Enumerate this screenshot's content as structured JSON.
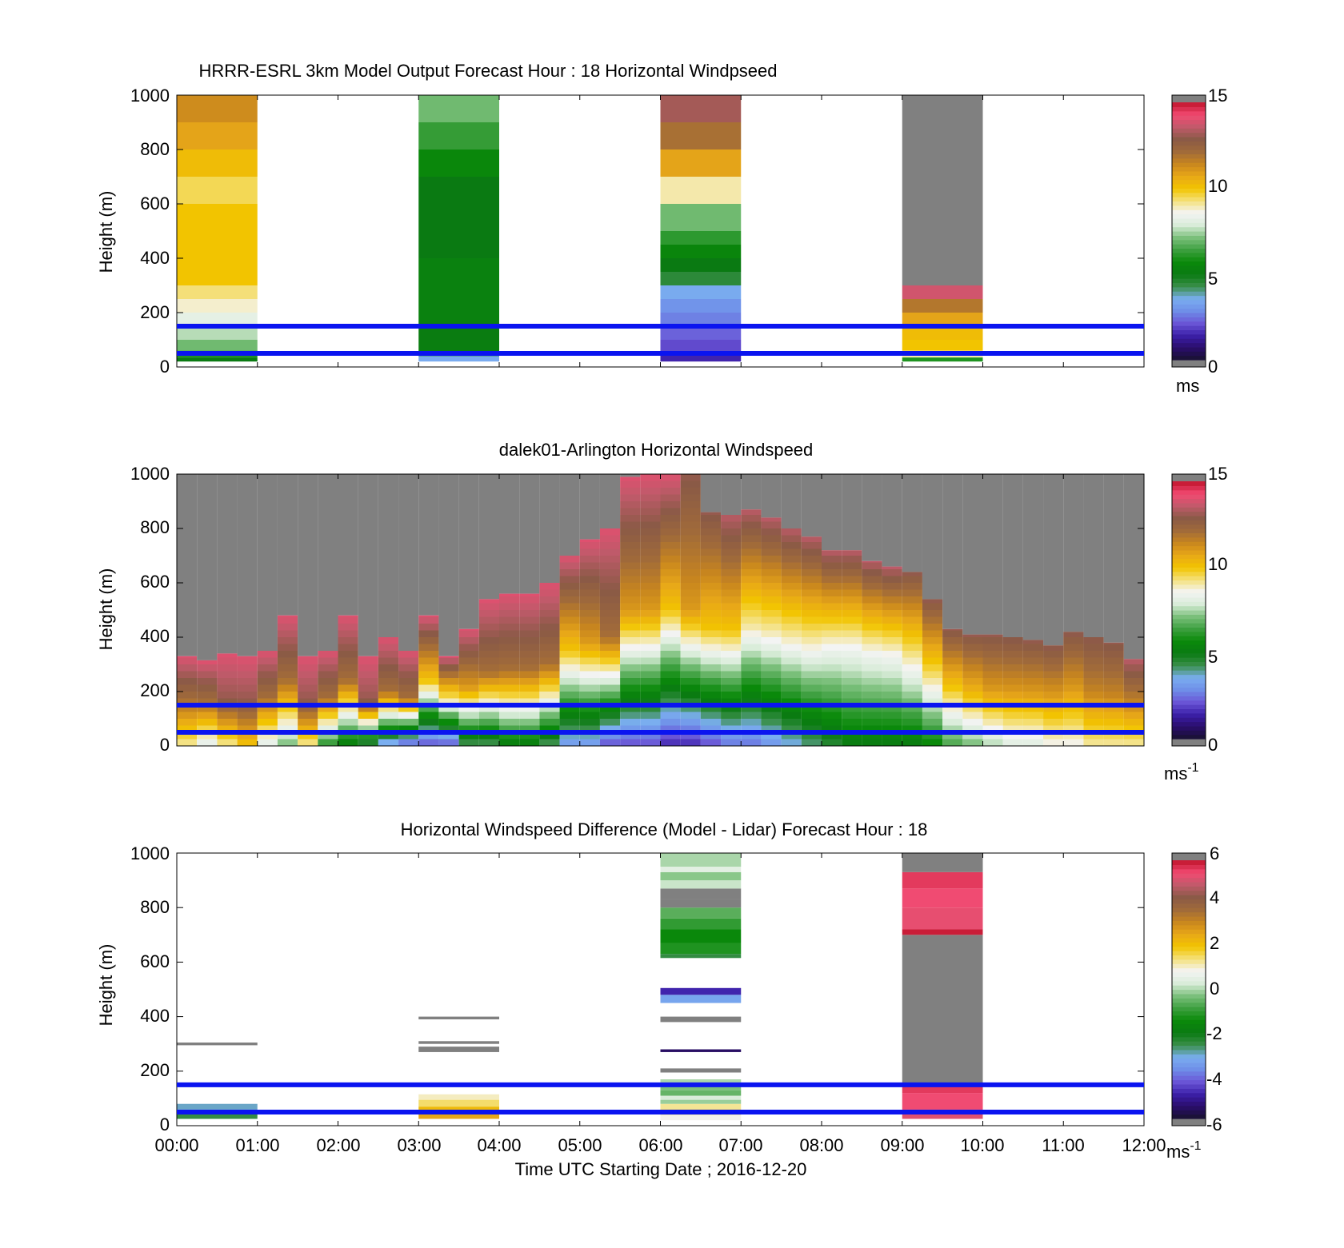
{
  "colorbar_stops": [
    "#808080",
    "#18122e",
    "#2a0d6a",
    "#3b1fa8",
    "#6a55d6",
    "#6f8ee8",
    "#7aaef0",
    "#3a8f4a",
    "#0a7a12",
    "#0a8a0a",
    "#3ea040",
    "#7cc07c",
    "#d8ecd8",
    "#f4f4f4",
    "#f4e07a",
    "#f2c400",
    "#e8a818",
    "#c8861e",
    "#a06a3a",
    "#8a5a46",
    "#c05a6a",
    "#f24a72",
    "#c0142c",
    "#808080"
  ],
  "time_axis": {
    "ticks": [
      "00:00",
      "01:00",
      "02:00",
      "03:00",
      "04:00",
      "05:00",
      "06:00",
      "07:00",
      "08:00",
      "09:00",
      "10:00",
      "11:00",
      "12:00"
    ],
    "label": "Time UTC  Starting Date ; 2016-12-20"
  },
  "panels": [
    {
      "title": "HRRR-ESRL 3km Model Output   Forecast Hour : 18 Horizontal Windpseed",
      "ylabel": "Height (m)",
      "yticks": [
        "0",
        "200",
        "400",
        "600",
        "800",
        "1000"
      ],
      "cbar_ticks": [
        "0",
        "5",
        "10",
        "15"
      ],
      "cbar_unit": "ms",
      "cbar_unit_sup": ""
    },
    {
      "title": "dalek01-Arlington  Horizontal Windspeed",
      "ylabel": "Height (m)",
      "yticks": [
        "0",
        "200",
        "400",
        "600",
        "800",
        "1000"
      ],
      "cbar_ticks": [
        "0",
        "5",
        "10",
        "15"
      ],
      "cbar_unit": "ms",
      "cbar_unit_sup": "-1"
    },
    {
      "title": "Horizontal Windspeed Difference (Model - Lidar) Forecast Hour : 18",
      "ylabel": "Height (m)",
      "yticks": [
        "0",
        "200",
        "400",
        "600",
        "800",
        "1000"
      ],
      "cbar_ticks": [
        "-6",
        "-4",
        "-2",
        "0",
        "2",
        "4",
        "6"
      ],
      "cbar_unit": "ms",
      "cbar_unit_sup": "-1"
    }
  ],
  "chart_data": [
    {
      "type": "heatmap",
      "title": "HRRR-ESRL 3km Model Output   Forecast Hour : 18 Horizontal Windpseed",
      "xlabel": "",
      "ylabel": "Height (m)",
      "xlim": [
        0,
        12
      ],
      "ylim": [
        0,
        1000
      ],
      "color_range": [
        0,
        15
      ],
      "colorbar_unit": "ms",
      "reference_lines_m": [
        50,
        150
      ],
      "columns": [
        {
          "t0": 0,
          "t1": 1,
          "bins": [
            {
              "z0": 20,
              "z1": 35,
              "v": 5
            },
            {
              "z0": 35,
              "z1": 60,
              "v": 6
            },
            {
              "z0": 60,
              "z1": 100,
              "v": 7
            },
            {
              "z0": 100,
              "z1": 150,
              "v": 7.6
            },
            {
              "z0": 150,
              "z1": 200,
              "v": 8.2
            },
            {
              "z0": 200,
              "z1": 250,
              "v": 8.8
            },
            {
              "z0": 250,
              "z1": 300,
              "v": 9.3
            },
            {
              "z0": 300,
              "z1": 600,
              "v": 10
            },
            {
              "z0": 600,
              "z1": 700,
              "v": 9.5
            },
            {
              "z0": 700,
              "z1": 800,
              "v": 10.2
            },
            {
              "z0": 800,
              "z1": 900,
              "v": 10.8
            },
            {
              "z0": 900,
              "z1": 1000,
              "v": 11.3
            }
          ]
        },
        {
          "t0": 3,
          "t1": 4,
          "bins": [
            {
              "z0": 20,
              "z1": 40,
              "v": 3.5
            },
            {
              "z0": 40,
              "z1": 100,
              "v": 5.2
            },
            {
              "z0": 100,
              "z1": 150,
              "v": 5.1
            },
            {
              "z0": 150,
              "z1": 400,
              "v": 5.3
            },
            {
              "z0": 400,
              "z1": 700,
              "v": 5
            },
            {
              "z0": 700,
              "z1": 800,
              "v": 5.6
            },
            {
              "z0": 800,
              "z1": 900,
              "v": 6.3
            },
            {
              "z0": 900,
              "z1": 1000,
              "v": 7
            }
          ]
        },
        {
          "t0": 6,
          "t1": 7,
          "bins": [
            {
              "z0": 20,
              "z1": 50,
              "v": 1.5
            },
            {
              "z0": 50,
              "z1": 100,
              "v": 2
            },
            {
              "z0": 100,
              "z1": 150,
              "v": 2.3
            },
            {
              "z0": 150,
              "z1": 200,
              "v": 2.7
            },
            {
              "z0": 200,
              "z1": 250,
              "v": 3
            },
            {
              "z0": 250,
              "z1": 300,
              "v": 3.5
            },
            {
              "z0": 300,
              "z1": 350,
              "v": 4.5
            },
            {
              "z0": 350,
              "z1": 400,
              "v": 5
            },
            {
              "z0": 400,
              "z1": 450,
              "v": 5.5
            },
            {
              "z0": 450,
              "z1": 500,
              "v": 6.2
            },
            {
              "z0": 500,
              "z1": 600,
              "v": 7
            },
            {
              "z0": 600,
              "z1": 700,
              "v": 9
            },
            {
              "z0": 700,
              "z1": 800,
              "v": 10.8
            },
            {
              "z0": 800,
              "z1": 900,
              "v": 12
            },
            {
              "z0": 900,
              "z1": 1000,
              "v": 13.2
            }
          ]
        },
        {
          "t0": 9,
          "t1": 10,
          "bins": [
            {
              "z0": 20,
              "z1": 35,
              "v": 6
            },
            {
              "z0": 35,
              "z1": 60,
              "v": 9
            },
            {
              "z0": 60,
              "z1": 100,
              "v": 10
            },
            {
              "z0": 100,
              "z1": 150,
              "v": 10.2
            },
            {
              "z0": 150,
              "z1": 200,
              "v": 10.8
            },
            {
              "z0": 200,
              "z1": 250,
              "v": 11.8
            },
            {
              "z0": 250,
              "z1": 300,
              "v": 13.8
            },
            {
              "z0": 300,
              "z1": 1000,
              "v": null
            }
          ]
        }
      ]
    },
    {
      "type": "heatmap",
      "title": "dalek01-Arlington  Horizontal Windspeed",
      "xlabel": "",
      "ylabel": "Height (m)",
      "xlim": [
        0,
        12
      ],
      "ylim": [
        0,
        1000
      ],
      "color_range": [
        0,
        15
      ],
      "colorbar_unit": "ms-1",
      "reference_lines_m": [
        50,
        150
      ],
      "bin_width_hours": 0.25,
      "bin_height_m": 25,
      "no_data_above_m": [
        330,
        315,
        340,
        330,
        350,
        480,
        330,
        350,
        480,
        330,
        400,
        350,
        480,
        330,
        430,
        540,
        560,
        560,
        600,
        700,
        760,
        800,
        990,
        1000,
        1000,
        1000,
        860,
        850,
        870,
        840,
        800,
        770,
        720,
        720,
        680,
        660,
        640,
        540,
        430,
        410,
        410,
        400,
        390,
        370,
        420,
        400,
        380,
        320
      ],
      "wind_speed_profiles_ms": [
        {
          "t": 0.125,
          "low": 9,
          "mid": 12,
          "high": 14
        },
        {
          "t": 0.375,
          "low": 8,
          "mid": 12,
          "high": 14
        },
        {
          "t": 0.625,
          "low": 9,
          "mid": 13,
          "high": 14
        },
        {
          "t": 0.875,
          "low": 10,
          "mid": 13,
          "high": 14
        },
        {
          "t": 1.125,
          "low": 8,
          "mid": 12,
          "high": 14
        },
        {
          "t": 1.375,
          "low": 7,
          "mid": 12,
          "high": 14
        },
        {
          "t": 1.625,
          "low": 9,
          "mid": 13,
          "high": 14
        },
        {
          "t": 1.875,
          "low": 6,
          "mid": 12,
          "high": 14
        },
        {
          "t": 2.125,
          "low": 5,
          "mid": 12,
          "high": 14
        },
        {
          "t": 2.375,
          "low": 4,
          "mid": 13,
          "high": 14
        },
        {
          "t": 2.625,
          "low": 3,
          "mid": 12,
          "high": 14
        },
        {
          "t": 2.875,
          "low": 2,
          "mid": 12,
          "high": 14
        },
        {
          "t": 3.125,
          "low": 2,
          "mid": 10,
          "high": 14
        },
        {
          "t": 3.375,
          "low": 2,
          "mid": 9,
          "high": 14
        },
        {
          "t": 3.625,
          "low": 4,
          "mid": 11,
          "high": 14
        },
        {
          "t": 3.875,
          "low": 4,
          "mid": 12,
          "high": 14
        },
        {
          "t": 4.125,
          "low": 5,
          "mid": 12,
          "high": 14
        },
        {
          "t": 4.375,
          "low": 5,
          "mid": 12,
          "high": 14
        },
        {
          "t": 4.625,
          "low": 4,
          "mid": 12,
          "high": 14
        },
        {
          "t": 4.875,
          "low": 3,
          "mid": 10,
          "high": 14
        },
        {
          "t": 5.125,
          "low": 3,
          "mid": 11,
          "high": 14
        },
        {
          "t": 5.375,
          "low": 2,
          "mid": 12,
          "high": 14
        },
        {
          "t": 5.625,
          "low": 2,
          "mid": 11,
          "high": 14
        },
        {
          "t": 5.875,
          "low": 2,
          "mid": 11,
          "high": 14
        },
        {
          "t": 6.125,
          "low": 1.5,
          "mid": 10,
          "high": 14
        },
        {
          "t": 6.375,
          "low": 1.5,
          "mid": 11,
          "high": 13
        },
        {
          "t": 6.625,
          "low": 2,
          "mid": 10,
          "high": 13
        },
        {
          "t": 6.875,
          "low": 2.5,
          "mid": 10,
          "high": 13.5
        },
        {
          "t": 7.125,
          "low": 2.5,
          "mid": 9,
          "high": 13.5
        },
        {
          "t": 7.375,
          "low": 3,
          "mid": 9,
          "high": 13.5
        },
        {
          "t": 7.625,
          "low": 3.5,
          "mid": 9,
          "high": 13.5
        },
        {
          "t": 7.875,
          "low": 4,
          "mid": 9,
          "high": 13.5
        },
        {
          "t": 8.125,
          "low": 4.5,
          "mid": 8.5,
          "high": 13.5
        },
        {
          "t": 8.375,
          "low": 5,
          "mid": 8.5,
          "high": 13.5
        },
        {
          "t": 8.625,
          "low": 5,
          "mid": 8.5,
          "high": 13.5
        },
        {
          "t": 8.875,
          "low": 5,
          "mid": 8.5,
          "high": 13.5
        },
        {
          "t": 9.125,
          "low": 5,
          "mid": 9,
          "high": 13
        },
        {
          "t": 9.375,
          "low": 5.5,
          "mid": 9.5,
          "high": 13
        },
        {
          "t": 9.625,
          "low": 6.5,
          "mid": 10,
          "high": 13
        },
        {
          "t": 9.875,
          "low": 7,
          "mid": 10.5,
          "high": 13
        },
        {
          "t": 10.125,
          "low": 7.5,
          "mid": 11,
          "high": 13
        },
        {
          "t": 10.375,
          "low": 8,
          "mid": 11,
          "high": 13
        },
        {
          "t": 10.625,
          "low": 8,
          "mid": 11,
          "high": 13
        },
        {
          "t": 10.875,
          "low": 8.5,
          "mid": 11,
          "high": 13
        },
        {
          "t": 11.125,
          "low": 8.5,
          "mid": 11,
          "high": 13
        },
        {
          "t": 11.375,
          "low": 9,
          "mid": 11.5,
          "high": 13
        },
        {
          "t": 11.625,
          "low": 9,
          "mid": 11.5,
          "high": 13
        },
        {
          "t": 11.875,
          "low": 9,
          "mid": 11.5,
          "high": 13.5
        }
      ]
    },
    {
      "type": "heatmap",
      "title": "Horizontal Windspeed Difference (Model - Lidar) Forecast Hour : 18",
      "xlabel": "Time UTC  Starting Date ; 2016-12-20",
      "ylabel": "Height (m)",
      "xlim": [
        0,
        12
      ],
      "ylim": [
        0,
        1000
      ],
      "color_range": [
        -6,
        6
      ],
      "colorbar_unit": "ms-1",
      "reference_lines_m": [
        50,
        150
      ],
      "columns": [
        {
          "t0": 0,
          "t1": 1,
          "bins": [
            {
              "z0": 25,
              "z1": 45,
              "v": -2.5
            },
            {
              "z0": 45,
              "z1": 60,
              "v": -3
            },
            {
              "z0": 60,
              "z1": 80,
              "v": -3
            },
            {
              "z0": 295,
              "z1": 305,
              "v": null
            }
          ]
        },
        {
          "t0": 3,
          "t1": 4,
          "bins": [
            {
              "z0": 25,
              "z1": 45,
              "v": 2.6
            },
            {
              "z0": 45,
              "z1": 70,
              "v": 2.2
            },
            {
              "z0": 70,
              "z1": 95,
              "v": 1.5
            },
            {
              "z0": 95,
              "z1": 115,
              "v": 1.1
            },
            {
              "z0": 270,
              "z1": 290,
              "v": null
            },
            {
              "z0": 300,
              "z1": 310,
              "v": null
            },
            {
              "z0": 390,
              "z1": 400,
              "v": null
            }
          ]
        },
        {
          "t0": 6,
          "t1": 7,
          "bins": [
            {
              "z0": 20,
              "z1": 40,
              "v": 0.9
            },
            {
              "z0": 40,
              "z1": 60,
              "v": 1.6
            },
            {
              "z0": 60,
              "z1": 80,
              "v": 1.3
            },
            {
              "z0": 80,
              "z1": 95,
              "v": -0.1
            },
            {
              "z0": 95,
              "z1": 110,
              "v": 0.3
            },
            {
              "z0": 110,
              "z1": 130,
              "v": -0.5
            },
            {
              "z0": 130,
              "z1": 150,
              "v": -0.3
            },
            {
              "z0": 150,
              "z1": 170,
              "v": 0
            },
            {
              "z0": 195,
              "z1": 210,
              "v": null
            },
            {
              "z0": 270,
              "z1": 280,
              "v": -5.5
            },
            {
              "z0": 380,
              "z1": 400,
              "v": null
            },
            {
              "z0": 450,
              "z1": 480,
              "v": -3.3
            },
            {
              "z0": 480,
              "z1": 505,
              "v": -4.8
            },
            {
              "z0": 615,
              "z1": 630,
              "v": -2.5
            },
            {
              "z0": 630,
              "z1": 670,
              "v": -1.2
            },
            {
              "z0": 670,
              "z1": 720,
              "v": -1.5
            },
            {
              "z0": 720,
              "z1": 760,
              "v": -1
            },
            {
              "z0": 760,
              "z1": 800,
              "v": -0.6
            },
            {
              "z0": 800,
              "z1": 830,
              "v": null
            },
            {
              "z0": 830,
              "z1": 870,
              "v": null
            },
            {
              "z0": 870,
              "z1": 900,
              "v": 0.2
            },
            {
              "z0": 900,
              "z1": 930,
              "v": -0.2
            },
            {
              "z0": 930,
              "z1": 950,
              "v": 0.5
            },
            {
              "z0": 950,
              "z1": 1000,
              "v": 0
            }
          ]
        },
        {
          "t0": 9,
          "t1": 10,
          "bins": [
            {
              "z0": 25,
              "z1": 60,
              "v": 5.2
            },
            {
              "z0": 60,
              "z1": 120,
              "v": 5.4
            },
            {
              "z0": 120,
              "z1": 150,
              "v": 5.6
            },
            {
              "z0": 150,
              "z1": 700,
              "v": null
            },
            {
              "z0": 700,
              "z1": 720,
              "v": 5.9
            },
            {
              "z0": 720,
              "z1": 800,
              "v": 5.3
            },
            {
              "z0": 800,
              "z1": 870,
              "v": 5.4
            },
            {
              "z0": 870,
              "z1": 930,
              "v": 5.6
            },
            {
              "z0": 930,
              "z1": 1000,
              "v": null
            }
          ]
        }
      ]
    }
  ]
}
